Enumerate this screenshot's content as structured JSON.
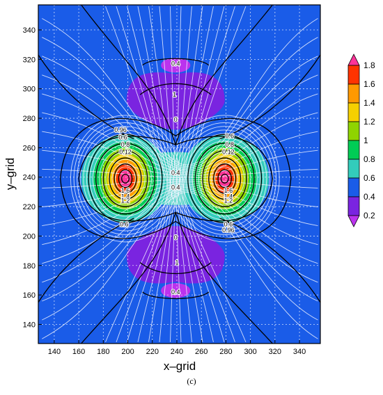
{
  "panel_label": "(c)",
  "chart_data": {
    "type": "contour",
    "title": "",
    "xlabel": "x–grid",
    "ylabel": "y–grid",
    "xlim": [
      127,
      357
    ],
    "ylim": [
      127,
      357
    ],
    "x_ticks": [
      140,
      160,
      180,
      200,
      220,
      240,
      260,
      280,
      300,
      320,
      340
    ],
    "y_ticks": [
      140,
      160,
      180,
      200,
      220,
      240,
      260,
      280,
      300,
      320,
      340
    ],
    "grid": true,
    "streamlines": true,
    "centers": [
      {
        "x": 198,
        "y": 239,
        "value": 1.8
      },
      {
        "x": 279,
        "y": 239,
        "value": 1.8
      }
    ],
    "low_lobes": [
      {
        "x": 239,
        "y": 280,
        "value": 0
      },
      {
        "x": 239,
        "y": 199,
        "value": 0
      }
    ],
    "colorbar": {
      "labels": [
        "1.8",
        "1.6",
        "1.4",
        "1.2",
        "1",
        "0.8",
        "0.6",
        "0.4",
        "0.2"
      ],
      "colors": [
        "#ff3399",
        "#ff3300",
        "#ff9900",
        "#f5d000",
        "#8fd400",
        "#00cc55",
        "#33ccbb",
        "#1a5ce8",
        "#7a24e0",
        "#bb33ee"
      ]
    },
    "contour_labels": [
      {
        "text": "0.4",
        "x": 239,
        "y": 317
      },
      {
        "text": "1",
        "x": 238,
        "y": 296
      },
      {
        "text": "0",
        "x": 239,
        "y": 279
      },
      {
        "text": "0.96",
        "x": 194,
        "y": 272
      },
      {
        "text": "0.6",
        "x": 196,
        "y": 267
      },
      {
        "text": "0.8",
        "x": 198,
        "y": 262
      },
      {
        "text": "0.12",
        "x": 198,
        "y": 257
      },
      {
        "text": "0.6",
        "x": 283,
        "y": 268
      },
      {
        "text": "0.8",
        "x": 283,
        "y": 262
      },
      {
        "text": "0.12",
        "x": 282,
        "y": 257
      },
      {
        "text": "0.4",
        "x": 239,
        "y": 243
      },
      {
        "text": "0.4",
        "x": 239,
        "y": 233
      },
      {
        "text": "1.6",
        "x": 198,
        "y": 231
      },
      {
        "text": "1.4",
        "x": 198,
        "y": 227
      },
      {
        "text": "1.2",
        "x": 198,
        "y": 224
      },
      {
        "text": "1.6",
        "x": 282,
        "y": 231
      },
      {
        "text": "1.4",
        "x": 282,
        "y": 227
      },
      {
        "text": "1.2",
        "x": 282,
        "y": 224
      },
      {
        "text": "0.6",
        "x": 197,
        "y": 208
      },
      {
        "text": "0.6",
        "x": 282,
        "y": 208
      },
      {
        "text": "0.96",
        "x": 282,
        "y": 204
      },
      {
        "text": "0",
        "x": 239,
        "y": 199
      },
      {
        "text": "1",
        "x": 240,
        "y": 182
      },
      {
        "text": "0.4",
        "x": 239,
        "y": 162
      }
    ]
  }
}
